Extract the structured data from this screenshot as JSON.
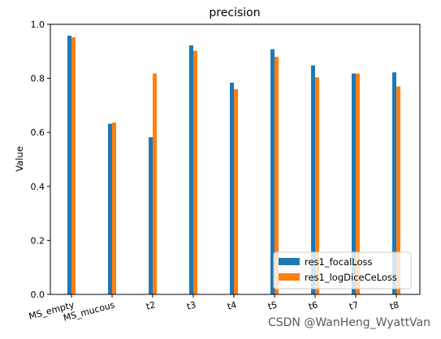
{
  "chart_data": {
    "type": "bar",
    "title": "precision",
    "xlabel": "",
    "ylabel": "Value",
    "ylim": [
      0,
      1.0
    ],
    "yticks": [
      "0.0",
      "0.2",
      "0.4",
      "0.6",
      "0.8",
      "1.0"
    ],
    "categories": [
      "MS_empty",
      "MS_mucous",
      "t2",
      "t3",
      "t4",
      "t5",
      "t6",
      "t7",
      "t8"
    ],
    "series": [
      {
        "name": "res1_focalLoss",
        "color": "#1f77b4",
        "values": [
          0.958,
          0.632,
          0.582,
          0.922,
          0.784,
          0.908,
          0.848,
          0.818,
          0.822
        ]
      },
      {
        "name": "res1_logDiceCeLoss",
        "color": "#ff7f0e",
        "values": [
          0.952,
          0.636,
          0.818,
          0.902,
          0.76,
          0.88,
          0.804,
          0.818,
          0.77
        ]
      }
    ],
    "legend": "bottom-right",
    "grid": false
  },
  "watermark": "CSDN @WanHeng_WyattVan"
}
